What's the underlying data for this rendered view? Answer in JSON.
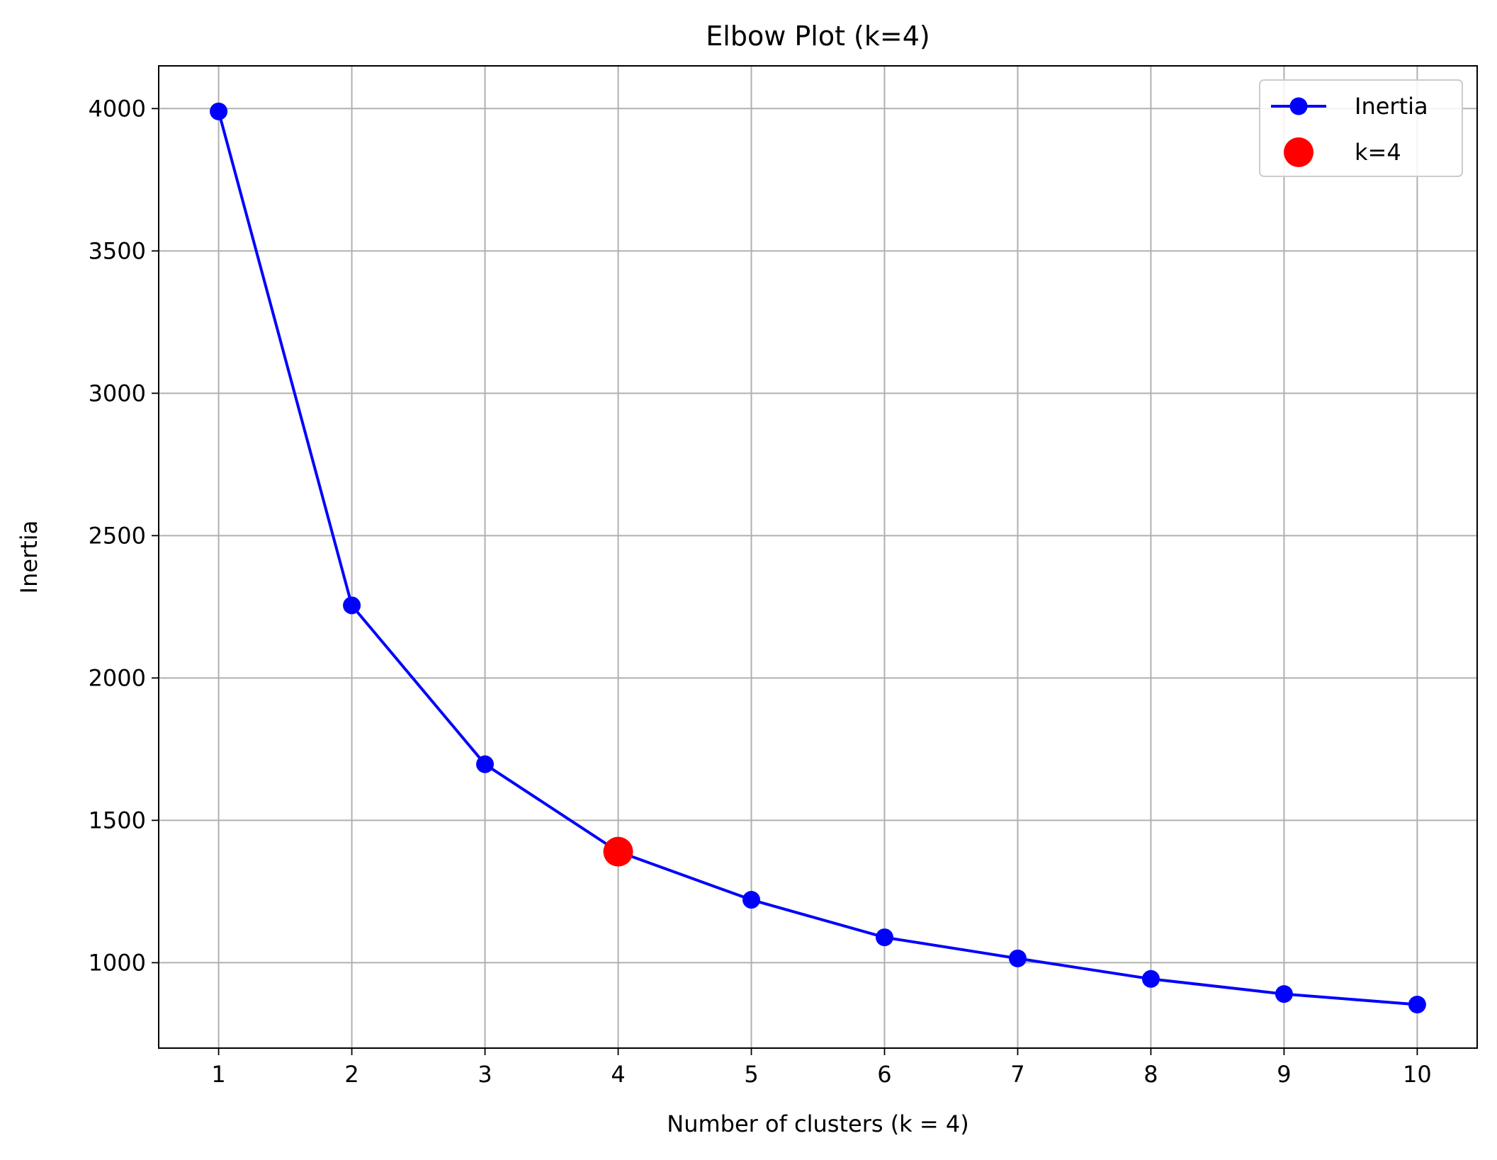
{
  "chart_data": {
    "type": "line",
    "title": "Elbow Plot (k=4)",
    "xlabel": "Number of clusters (k = 4)",
    "ylabel": "Inertia",
    "x": [
      1,
      2,
      3,
      4,
      5,
      6,
      7,
      8,
      9,
      10
    ],
    "x_tick_labels": [
      "1",
      "2",
      "3",
      "4",
      "5",
      "6",
      "7",
      "8",
      "9",
      "10"
    ],
    "y_ticks": [
      1000,
      1500,
      2000,
      2500,
      3000,
      3500,
      4000
    ],
    "y_tick_labels": [
      "1000",
      "1500",
      "2000",
      "2500",
      "3000",
      "3500",
      "4000"
    ],
    "xlim": [
      0.55,
      10.45
    ],
    "ylim": [
      700,
      4150
    ],
    "grid": true,
    "legend_position": "top-right",
    "series": [
      {
        "name": "Inertia",
        "color": "#0000ff",
        "marker": "circle",
        "values": [
          3990,
          2255,
          1697,
          1390,
          1221,
          1089,
          1015,
          943,
          890,
          853
        ]
      }
    ],
    "highlight": {
      "name": "k=4",
      "color": "#ff0000",
      "x": 4,
      "y": 1390
    }
  }
}
